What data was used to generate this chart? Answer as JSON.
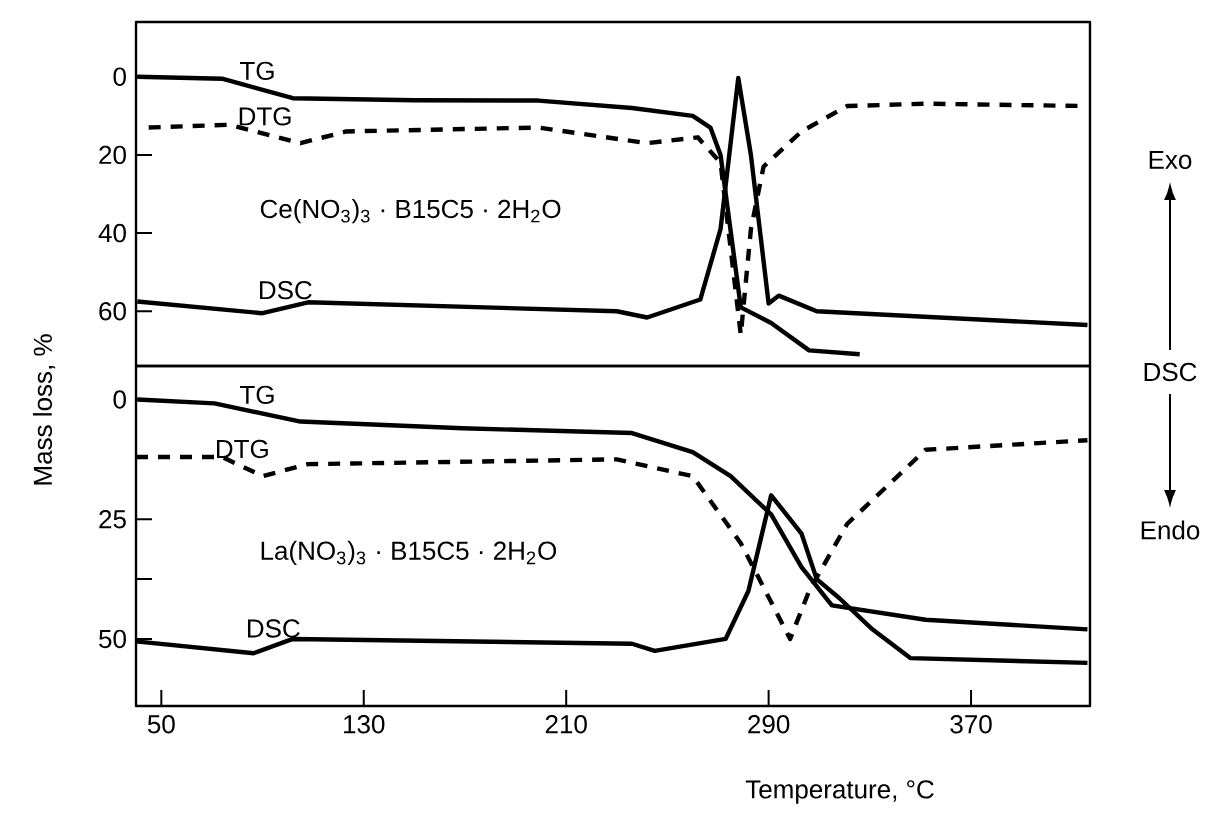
{
  "chart_data": [
    {
      "type": "line",
      "ylabel": "Mass loss, %",
      "xlim": [
        40,
        417
      ],
      "ylim": [
        74,
        -14
      ],
      "yticks": [
        0,
        20,
        40,
        60
      ],
      "tick_labels": "y",
      "annotations": [
        "Ce(NO$_{3}$)$_{3}$ · B15C5 · 2H$_{2}$O",
        "Exo",
        "DSC",
        "Endo"
      ],
      "series": [
        {
          "name": "TG",
          "color": "#000000",
          "line_style": "solid",
          "x": [
            40.5,
            74,
            102,
            150,
            199,
            236,
            260,
            267,
            271,
            279,
            291,
            306,
            326
          ],
          "values": [
            0,
            0.5,
            5.5,
            6,
            6.1,
            8,
            10,
            13,
            20,
            59,
            63,
            70,
            71
          ]
        },
        {
          "name": "DTG",
          "color": "#000000",
          "line_style": "dashed",
          "x": [
            45,
            77,
            105,
            123,
            199,
            242,
            262,
            271,
            279,
            283,
            288,
            303,
            321,
            352,
            416
          ],
          "values": [
            13,
            12.3,
            17,
            14,
            13,
            17,
            15.5,
            22,
            66,
            39,
            23,
            14,
            7.5,
            6.9,
            7.5
          ]
        },
        {
          "name": "DSC",
          "color": "#000000",
          "line_style": "solid",
          "x": [
            40.5,
            90,
            108,
            230,
            242,
            263,
            271,
            278,
            283,
            290,
            294,
            309,
            416
          ],
          "values": [
            57.5,
            60.5,
            57.7,
            60,
            61.6,
            57,
            39,
            0.3,
            20,
            58,
            56,
            60,
            63.5
          ]
        }
      ]
    },
    {
      "type": "line",
      "xlabel": "Temperature, °C",
      "xlim": [
        40,
        417
      ],
      "ylim": [
        64,
        -7
      ],
      "xticks": [
        50,
        130,
        210,
        290,
        370
      ],
      "yticks": [
        0,
        25,
        {
          "value": 37.5,
          "label": null
        },
        50
      ],
      "annotations": [
        "La(NO$_{3}$)$_{3}$ · B15C5 · 2H$_{2}$O"
      ],
      "series": [
        {
          "name": "TG",
          "color": "#000000",
          "line_style": "solid",
          "x": [
            40.5,
            71,
            105,
            169,
            236,
            260,
            275,
            291,
            303,
            315,
            352,
            416
          ],
          "values": [
            0,
            0.8,
            4.6,
            6,
            7,
            11,
            16,
            24,
            35,
            43,
            46,
            48
          ]
        },
        {
          "name": "DTG",
          "color": "#000000",
          "line_style": "dashed",
          "x": [
            40,
            74,
            90,
            108,
            230,
            260,
            279,
            298.5,
            306,
            321,
            352,
            416
          ],
          "values": [
            12,
            12,
            16,
            13.5,
            12.5,
            16,
            30,
            50,
            40,
            26,
            10.5,
            8.5
          ]
        },
        {
          "name": "DSC",
          "color": "#000000",
          "line_style": "solid",
          "x": [
            40,
            86.5,
            102,
            236,
            245,
            273,
            282,
            291,
            303,
            309,
            318,
            331,
            346,
            416
          ],
          "values": [
            50.5,
            53,
            50,
            51,
            52.5,
            50,
            40,
            20,
            28,
            37.5,
            41.5,
            48,
            54,
            55
          ]
        }
      ]
    }
  ]
}
